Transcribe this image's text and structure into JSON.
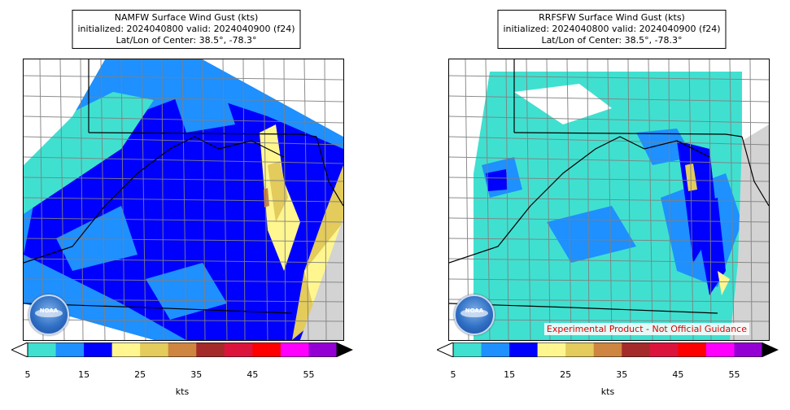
{
  "panels": [
    {
      "model": "NAMFW",
      "title_line1": "NAMFW Surface Wind Gust (kts)",
      "title_line2": "initialized: 2024040800 valid: 2024040900 (f24)",
      "title_line3": "Lat/Lon of Center: 38.5°, -78.3°",
      "logo_text": "NOAA",
      "disclaimer": ""
    },
    {
      "model": "RRFSFW",
      "title_line1": "RRFSFW Surface Wind Gust (kts)",
      "title_line2": "initialized: 2024040800 valid: 2024040900 (f24)",
      "title_line3": "Lat/Lon of Center: 38.5°, -78.3°",
      "logo_text": "NOAA",
      "disclaimer": "Experimental Product - Not Official Guidance"
    }
  ],
  "colorbar": {
    "unit_label": "kts",
    "tick_labels": [
      "5",
      "15",
      "25",
      "35",
      "45",
      "55"
    ],
    "colors": [
      "#40e0d0",
      "#1e90ff",
      "#0000ff",
      "#fff68f",
      "#e3cb5c",
      "#cd853f",
      "#a52a2a",
      "#dc143c",
      "#ff0000",
      "#ff00ff",
      "#9400d3"
    ],
    "under_color": "#ffffff",
    "over_color": "#000000"
  },
  "map_colors": {
    "no_data": "#ffffff",
    "ocean": "#d3d3d3",
    "county_lines": "#808080",
    "state_lines": "#000000"
  }
}
